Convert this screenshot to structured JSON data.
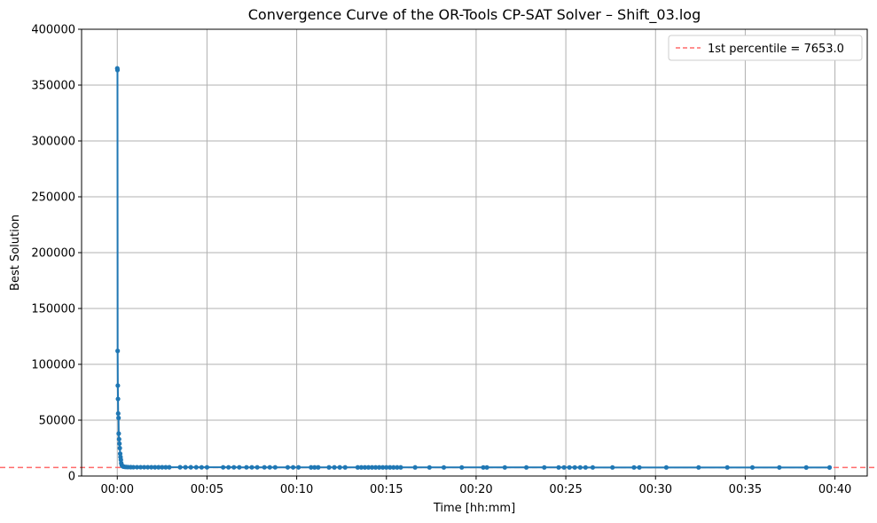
{
  "chart_data": {
    "type": "line",
    "title": "Convergence Curve of the OR-Tools CP-SAT Solver – Shift_03.log",
    "xlabel": "Time [hh:mm]",
    "ylabel": "Best Solution",
    "x_unit": "minutes",
    "xlim": [
      -1.99,
      41.8
    ],
    "ylim": [
      0,
      400000
    ],
    "x_ticks": [
      0,
      5,
      10,
      15,
      20,
      25,
      30,
      35,
      40
    ],
    "x_tick_labels": [
      "00:00",
      "00:05",
      "00:10",
      "00:15",
      "00:20",
      "00:25",
      "00:30",
      "00:35",
      "00:40"
    ],
    "y_ticks": [
      0,
      50000,
      100000,
      150000,
      200000,
      250000,
      300000,
      350000,
      400000
    ],
    "y_tick_labels": [
      "0",
      "50000",
      "100000",
      "150000",
      "200000",
      "250000",
      "300000",
      "350000",
      "400000"
    ],
    "grid": true,
    "legend_position": "top-right",
    "colors": {
      "series": "#1f77b4",
      "reference": "#ff6b6b",
      "grid": "#b0b0b0"
    },
    "reference_line": {
      "label": "1st percentile  = 7653.0",
      "y": 7653.0,
      "style": "dashed"
    },
    "series": [
      {
        "marker": "circle",
        "x": [
          0.0,
          0.01,
          0.02,
          0.03,
          0.04,
          0.05,
          0.07,
          0.08,
          0.1,
          0.12,
          0.14,
          0.16,
          0.18,
          0.2,
          0.22,
          0.25,
          0.28,
          0.32,
          0.36,
          0.42,
          0.5,
          0.6,
          0.75,
          0.9,
          1.1,
          1.3,
          1.5,
          1.7,
          1.9,
          2.1,
          2.3,
          2.5,
          2.7,
          2.9,
          3.5,
          3.8,
          4.1,
          4.4,
          4.7,
          5.0,
          5.9,
          6.2,
          6.5,
          6.8,
          7.2,
          7.5,
          7.8,
          8.2,
          8.5,
          8.8,
          9.5,
          9.8,
          10.1,
          10.8,
          11.0,
          11.2,
          11.8,
          12.1,
          12.4,
          12.7,
          13.4,
          13.6,
          13.8,
          14.0,
          14.2,
          14.4,
          14.6,
          14.8,
          15.0,
          15.2,
          15.4,
          15.6,
          15.8,
          16.6,
          17.4,
          18.2,
          19.2,
          20.4,
          20.6,
          21.6,
          22.8,
          23.8,
          24.6,
          24.9,
          25.2,
          25.5,
          25.8,
          26.1,
          26.5,
          27.6,
          28.8,
          29.1,
          30.6,
          32.4,
          34.0,
          35.4,
          36.9,
          38.4,
          39.7
        ],
        "y": [
          365000,
          363500,
          112000,
          81000,
          69000,
          56000,
          52000,
          38000,
          33000,
          29000,
          25000,
          20000,
          17000,
          14500,
          11500,
          9800,
          9000,
          8600,
          8400,
          8200,
          8100,
          8000,
          7950,
          7900,
          7900,
          7880,
          7870,
          7860,
          7860,
          7850,
          7850,
          7840,
          7840,
          7830,
          7820,
          7820,
          7810,
          7810,
          7800,
          7800,
          7790,
          7790,
          7790,
          7780,
          7780,
          7780,
          7770,
          7770,
          7770,
          7770,
          7760,
          7760,
          7760,
          7750,
          7750,
          7750,
          7740,
          7740,
          7740,
          7740,
          7730,
          7730,
          7730,
          7730,
          7730,
          7720,
          7720,
          7720,
          7720,
          7720,
          7710,
          7710,
          7710,
          7710,
          7700,
          7700,
          7700,
          7700,
          7700,
          7690,
          7690,
          7690,
          7690,
          7690,
          7690,
          7690,
          7680,
          7680,
          7680,
          7680,
          7680,
          7680,
          7670,
          7670,
          7670,
          7660,
          7660,
          7655,
          7653
        ]
      }
    ]
  }
}
